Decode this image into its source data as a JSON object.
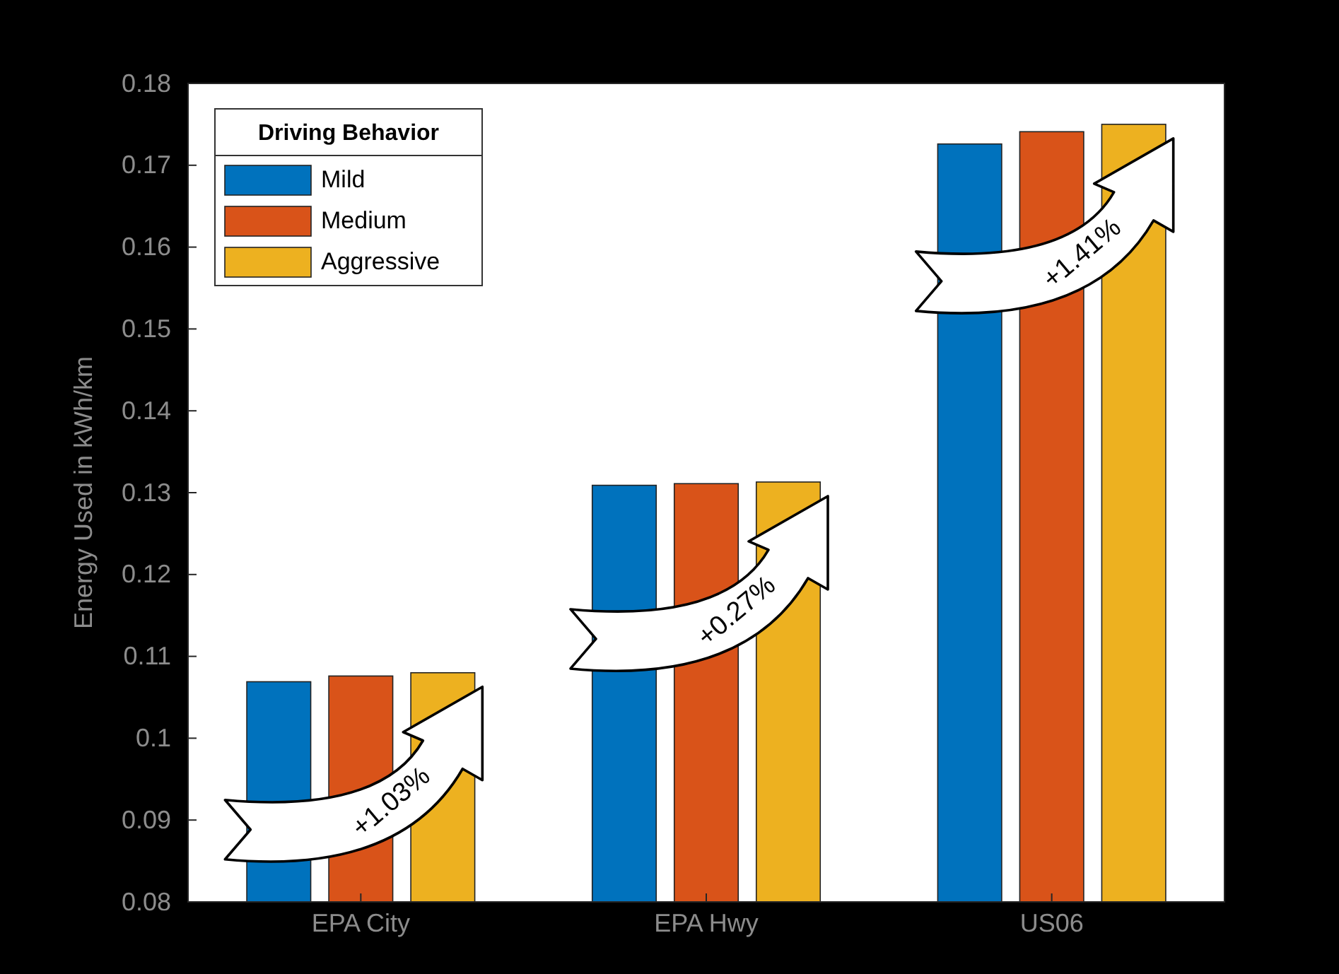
{
  "chart_data": {
    "type": "bar",
    "ylabel": "Energy Used in kWh/km",
    "legend_title": "Driving Behavior",
    "legend": "top left",
    "categories": [
      "EPA City",
      "EPA Hwy",
      "US06"
    ],
    "series": [
      {
        "name": "Mild",
        "color": "#0072bd",
        "values": [
          0.1069,
          0.1309,
          0.1726
        ]
      },
      {
        "name": "Medium",
        "color": "#d95319",
        "values": [
          0.1076,
          0.1311,
          0.1741
        ]
      },
      {
        "name": "Aggressive",
        "color": "#edb120",
        "values": [
          0.108,
          0.1313,
          0.175
        ]
      }
    ],
    "ylim": [
      0.08,
      0.18
    ],
    "yticks": [
      0.08,
      0.09,
      0.1,
      0.11,
      0.12,
      0.13,
      0.14,
      0.15,
      0.16,
      0.17,
      0.18
    ],
    "annotations": [
      "+1.03%",
      "+0.27%",
      "+1.41%"
    ]
  }
}
